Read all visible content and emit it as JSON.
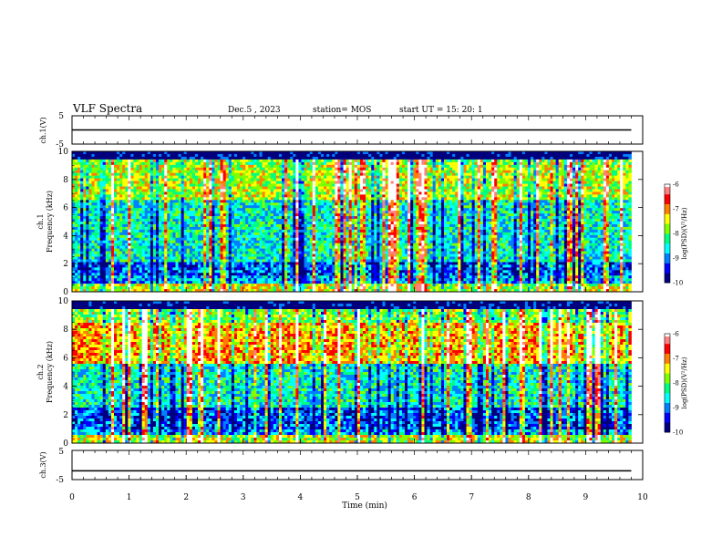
{
  "header": {
    "title": "VLF Spectra",
    "date": "Dec.5 , 2023",
    "station": "station= MOS",
    "start": "start UT = 15: 20: 1"
  },
  "chart_data": [
    {
      "type": "line",
      "panel": "ch1-voltage",
      "ylabel": "ch.1(V)",
      "ylim": [
        -5,
        5
      ],
      "yticks": [
        "5",
        "-5"
      ],
      "xlim": [
        0,
        10
      ],
      "series": [
        {
          "x": [
            0,
            9.8
          ],
          "y": [
            0,
            0
          ]
        }
      ]
    },
    {
      "type": "heatmap",
      "panel": "ch1-spectrogram",
      "ylabel": [
        "ch.1",
        "Frequency (kHz)"
      ],
      "ylim": [
        0,
        10
      ],
      "yticks": [
        "0",
        "2",
        "4",
        "6",
        "8",
        "10"
      ],
      "xlim": [
        0,
        10
      ],
      "data_end_min": 9.8,
      "colorbar": {
        "label": "log(PSD)(V²/Hz)",
        "range": [
          -10,
          -6
        ],
        "ticks": [
          "-6",
          "-7",
          "-8",
          "-9",
          "-10"
        ]
      },
      "features": {
        "intense_band_khz": [
          6.5,
          9
        ],
        "weak_band_khz": [
          1.2,
          2.2
        ]
      }
    },
    {
      "type": "heatmap",
      "panel": "ch2-spectrogram",
      "ylabel": [
        "ch.2",
        "Frequency (kHz)"
      ],
      "ylim": [
        0,
        10
      ],
      "yticks": [
        "0",
        "2",
        "4",
        "6",
        "8",
        "10"
      ],
      "xlim": [
        0,
        10
      ],
      "data_end_min": 9.8,
      "colorbar": {
        "label": "log(PSD)(V²/Hz)",
        "range": [
          -10,
          -6
        ],
        "ticks": [
          "-6",
          "-7",
          "-8",
          "-9",
          "-10"
        ]
      },
      "features": {
        "intense_band_khz": [
          5.5,
          8.5
        ],
        "weak_band_khz": [
          1.0,
          2.5
        ]
      }
    },
    {
      "type": "line",
      "panel": "ch3-voltage",
      "ylabel": "ch.3(V)",
      "ylim": [
        -5,
        5
      ],
      "yticks": [
        "5",
        "-5"
      ],
      "xlim": [
        0,
        10
      ],
      "series": [
        {
          "x": [
            0,
            9.8
          ],
          "y": [
            -2,
            -2
          ]
        }
      ]
    }
  ],
  "x_axis": {
    "label": "Time (min)",
    "ticks": [
      "0",
      "1",
      "2",
      "3",
      "4",
      "5",
      "6",
      "7",
      "8",
      "9",
      "10"
    ]
  },
  "colors": {
    "colormap": [
      "#00007f",
      "#0000ff",
      "#0080ff",
      "#00ffff",
      "#00ff80",
      "#80ff00",
      "#ffff00",
      "#ff8000",
      "#ff0000",
      "#ff8080",
      "#ffffff"
    ]
  }
}
